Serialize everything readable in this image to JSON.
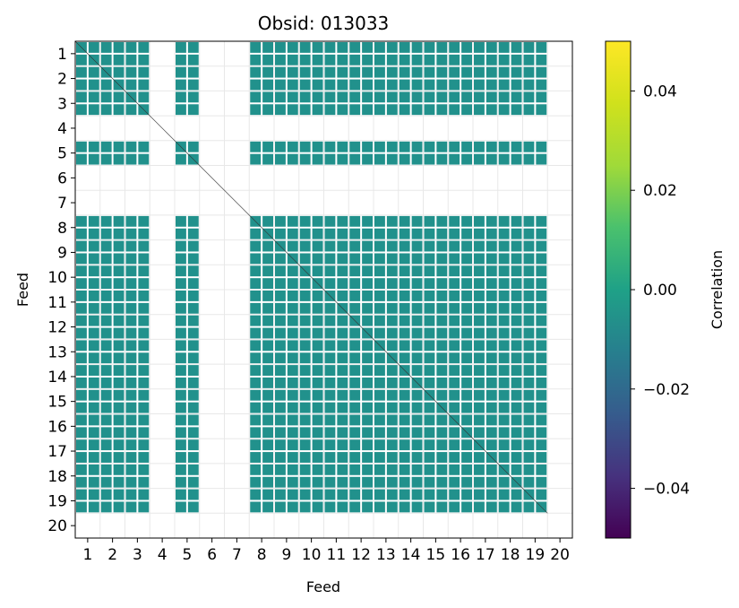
{
  "chart_data": {
    "type": "heatmap",
    "title": "Obsid: 013033",
    "xlabel": "Feed",
    "ylabel": "Feed",
    "feeds": [
      1,
      2,
      3,
      4,
      5,
      6,
      7,
      8,
      9,
      10,
      11,
      12,
      13,
      14,
      15,
      16,
      17,
      18,
      19,
      20
    ],
    "tick_labels": [
      "1",
      "2",
      "3",
      "4",
      "5",
      "6",
      "7",
      "8",
      "9",
      "10",
      "11",
      "12",
      "13",
      "14",
      "15",
      "16",
      "17",
      "18",
      "19",
      "20"
    ],
    "active_feeds": [
      1,
      2,
      3,
      5,
      8,
      9,
      10,
      11,
      12,
      13,
      14,
      15,
      16,
      17,
      18,
      19
    ],
    "inactive_feeds": [
      4,
      6,
      7,
      20
    ],
    "value": 0.0,
    "color_min": -0.05,
    "color_max": 0.05,
    "colormap": "viridis",
    "cell_color": "#21918c",
    "colorbar": {
      "label": "Correlation",
      "ticks": [
        0.04,
        0.02,
        0.0,
        -0.02,
        -0.04
      ],
      "tick_labels": [
        "0.04",
        "0.02",
        "0.00",
        "−0.02",
        "−0.04"
      ]
    }
  }
}
